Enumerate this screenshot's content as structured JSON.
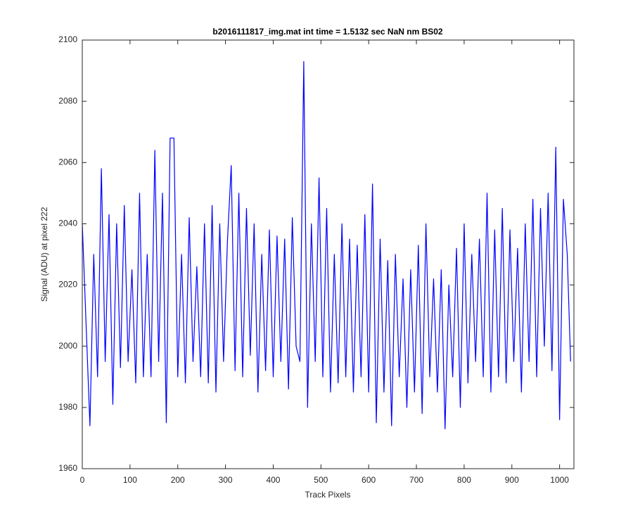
{
  "chart_data": {
    "type": "line",
    "title": "b2016111817_img.mat int time = 1.5132 sec  NaN nm BS02",
    "x_label": "Track Pixels",
    "y_label": "Signal (ADU) at pixel 222",
    "xlim": [
      0,
      1030
    ],
    "ylim": [
      1960,
      2100
    ],
    "xticks": [
      0,
      100,
      200,
      300,
      400,
      500,
      600,
      700,
      800,
      900,
      1000
    ],
    "yticks": [
      1960,
      1980,
      2000,
      2020,
      2040,
      2060,
      2080,
      2100
    ],
    "grid": false,
    "x": [
      0,
      8,
      16,
      24,
      32,
      40,
      48,
      56,
      64,
      72,
      80,
      88,
      96,
      104,
      112,
      120,
      128,
      136,
      144,
      152,
      160,
      168,
      176,
      184,
      192,
      200,
      208,
      216,
      224,
      232,
      240,
      248,
      256,
      264,
      272,
      280,
      288,
      296,
      304,
      312,
      320,
      328,
      336,
      344,
      352,
      360,
      368,
      376,
      384,
      392,
      400,
      408,
      416,
      424,
      432,
      440,
      448,
      456,
      464,
      472,
      480,
      488,
      496,
      504,
      512,
      520,
      528,
      536,
      544,
      552,
      560,
      568,
      576,
      584,
      592,
      600,
      608,
      616,
      624,
      632,
      640,
      648,
      656,
      664,
      672,
      680,
      688,
      696,
      704,
      712,
      720,
      728,
      736,
      744,
      752,
      760,
      768,
      776,
      784,
      792,
      800,
      808,
      816,
      824,
      832,
      840,
      848,
      856,
      864,
      872,
      880,
      888,
      896,
      904,
      912,
      920,
      928,
      936,
      944,
      952,
      960,
      968,
      976,
      984,
      992,
      1000,
      1008,
      1016,
      1023
    ],
    "series": [
      {
        "name": "Signal",
        "color": "#0000ff",
        "values": [
          2040,
          2007,
          1974,
          2030,
          1990,
          2058,
          1995,
          2043,
          1981,
          2040,
          1993,
          2046,
          1995,
          2025,
          1988,
          2050,
          1990,
          2030,
          1990,
          2064,
          1995,
          2050,
          1975,
          2068,
          2068,
          1990,
          2030,
          1988,
          2042,
          1995,
          2026,
          1990,
          2040,
          1988,
          2046,
          1985,
          2040,
          1995,
          2034,
          2059,
          1992,
          2050,
          1990,
          2045,
          1997,
          2040,
          1985,
          2030,
          1992,
          2038,
          1990,
          2036,
          1995,
          2035,
          1986,
          2042,
          2000,
          1995,
          2093,
          1980,
          2040,
          1995,
          2055,
          1990,
          2045,
          1985,
          2030,
          1988,
          2040,
          1990,
          2035,
          1985,
          2033,
          1990,
          2043,
          1985,
          2053,
          1975,
          2035,
          1985,
          2028,
          1974,
          2030,
          1990,
          2022,
          1980,
          2025,
          1985,
          2033,
          1978,
          2040,
          1990,
          2022,
          1985,
          2025,
          1973,
          2020,
          1990,
          2032,
          1980,
          2040,
          1988,
          2030,
          1995,
          2035,
          1990,
          2050,
          1985,
          2038,
          1990,
          2045,
          1988,
          2038,
          1995,
          2032,
          1985,
          2040,
          1995,
          2048,
          1990,
          2045,
          2000,
          2050,
          1992,
          2065,
          1976,
          2048,
          2030,
          1995
        ]
      }
    ]
  }
}
